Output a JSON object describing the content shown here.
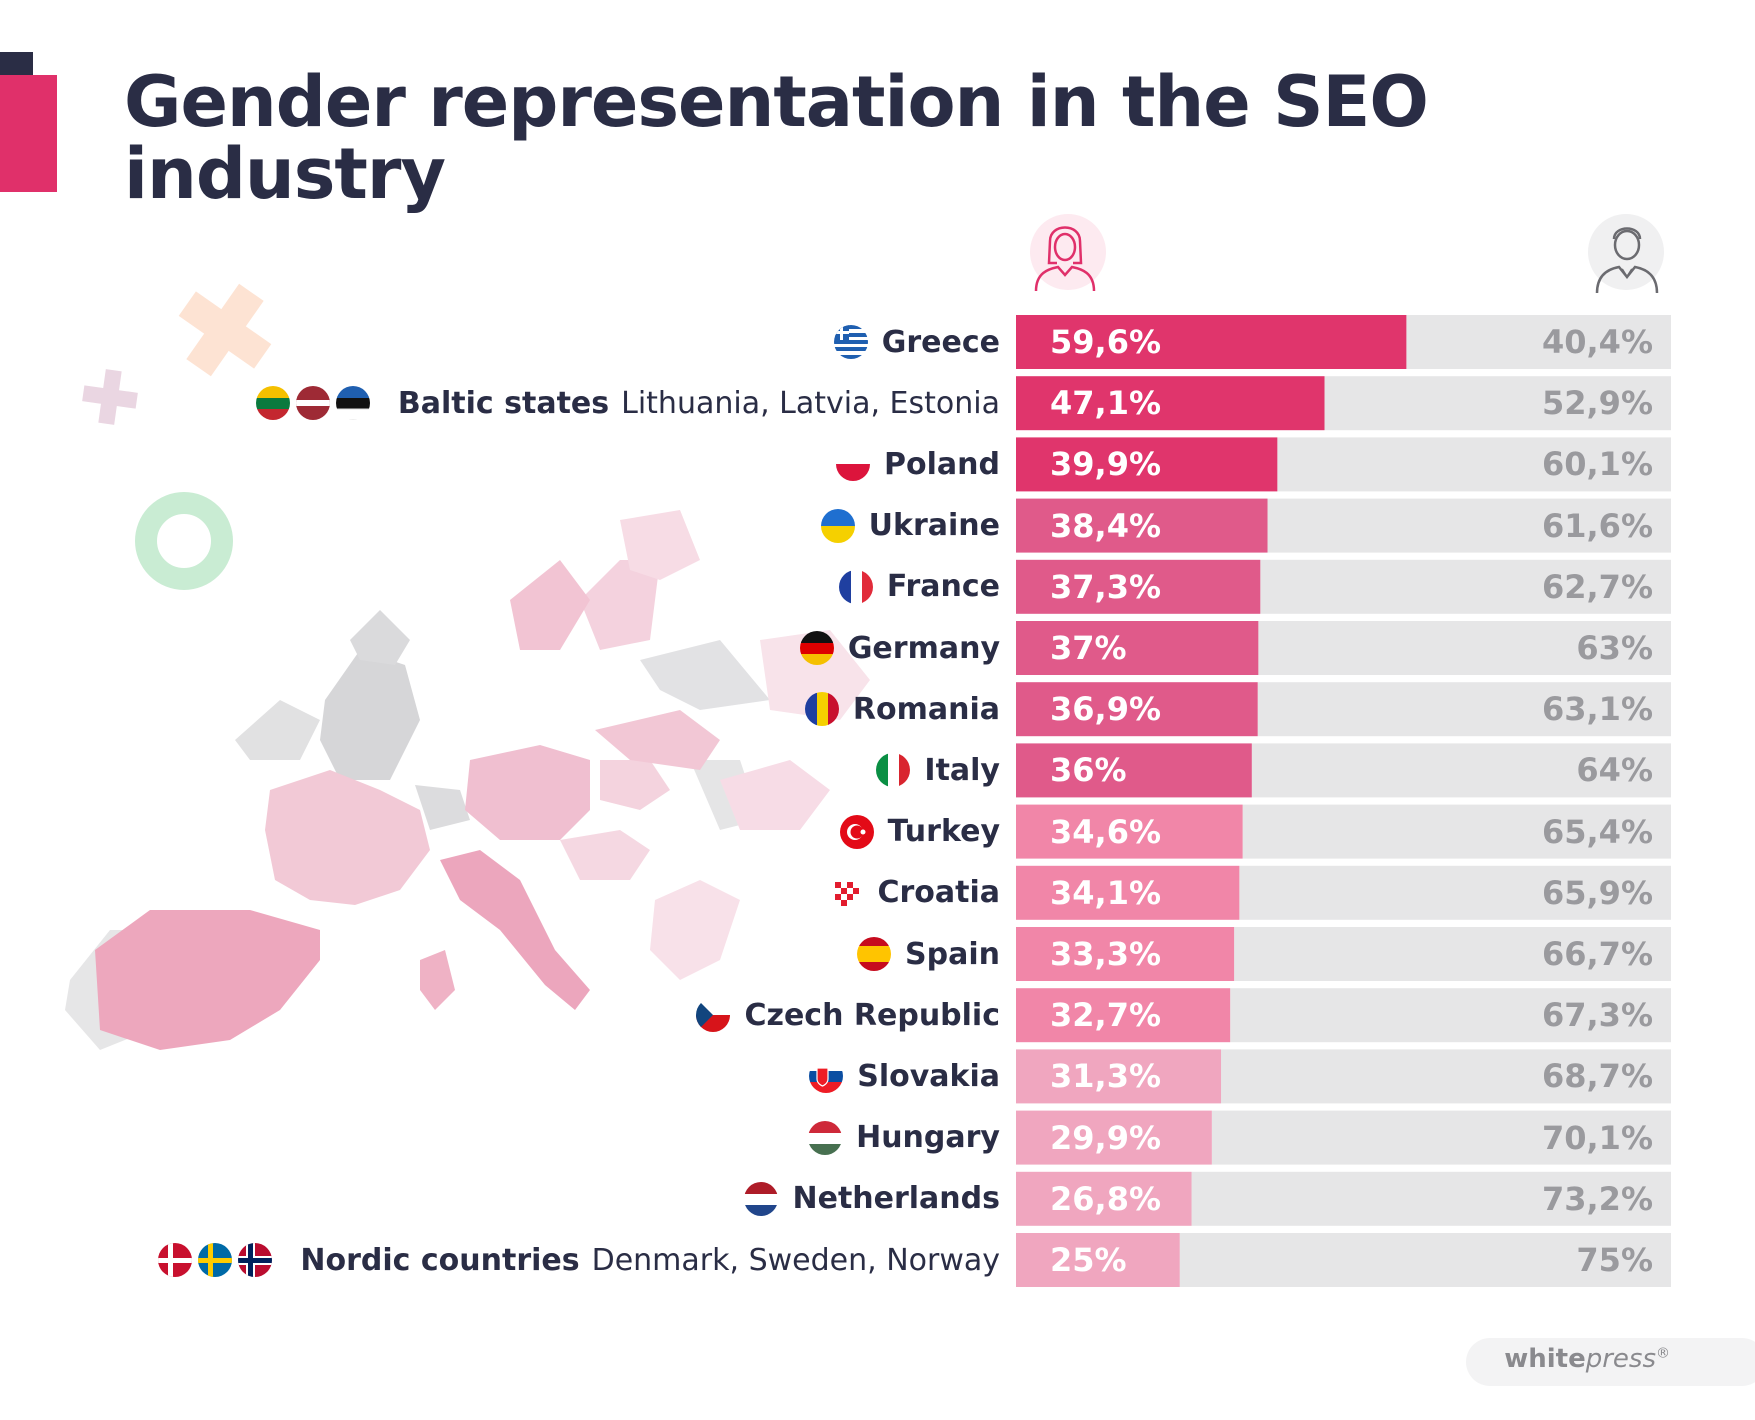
{
  "title": "Gender representation in the SEO industry",
  "chart_data": {
    "type": "bar",
    "orientation": "horizontal",
    "stacked": true,
    "title": "Gender representation in the SEO industry",
    "series": [
      {
        "name": "Women",
        "icon": "woman-icon"
      },
      {
        "name": "Men",
        "icon": "man-icon"
      }
    ],
    "xlim": [
      0,
      100
    ],
    "rows": [
      {
        "country": "Greece",
        "sub": "",
        "flags": [
          "gr"
        ],
        "women": 59.6,
        "men": 40.4,
        "women_label": "59,6%",
        "men_label": "40,4%"
      },
      {
        "country": "Baltic states",
        "sub": "Lithuania, Latvia, Estonia",
        "flags": [
          "lt",
          "lv",
          "ee"
        ],
        "women": 47.1,
        "men": 52.9,
        "women_label": "47,1%",
        "men_label": "52,9%"
      },
      {
        "country": "Poland",
        "sub": "",
        "flags": [
          "pl"
        ],
        "women": 39.9,
        "men": 60.1,
        "women_label": "39,9%",
        "men_label": "60,1%"
      },
      {
        "country": "Ukraine",
        "sub": "",
        "flags": [
          "ua"
        ],
        "women": 38.4,
        "men": 61.6,
        "women_label": "38,4%",
        "men_label": "61,6%"
      },
      {
        "country": "France",
        "sub": "",
        "flags": [
          "fr"
        ],
        "women": 37.3,
        "men": 62.7,
        "women_label": "37,3%",
        "men_label": "62,7%"
      },
      {
        "country": "Germany",
        "sub": "",
        "flags": [
          "de"
        ],
        "women": 37,
        "men": 63,
        "women_label": "37%",
        "men_label": "63%"
      },
      {
        "country": "Romania",
        "sub": "",
        "flags": [
          "ro"
        ],
        "women": 36.9,
        "men": 63.1,
        "women_label": "36,9%",
        "men_label": "63,1%"
      },
      {
        "country": "Italy",
        "sub": "",
        "flags": [
          "it"
        ],
        "women": 36,
        "men": 64,
        "women_label": "36%",
        "men_label": "64%"
      },
      {
        "country": "Turkey",
        "sub": "",
        "flags": [
          "tr"
        ],
        "women": 34.6,
        "men": 65.4,
        "women_label": "34,6%",
        "men_label": "65,4%"
      },
      {
        "country": "Croatia",
        "sub": "",
        "flags": [
          "hr"
        ],
        "women": 34.1,
        "men": 65.9,
        "women_label": "34,1%",
        "men_label": "65,9%"
      },
      {
        "country": "Spain",
        "sub": "",
        "flags": [
          "es"
        ],
        "women": 33.3,
        "men": 66.7,
        "women_label": "33,3%",
        "men_label": "66,7%"
      },
      {
        "country": "Czech Republic",
        "sub": "",
        "flags": [
          "cz"
        ],
        "women": 32.7,
        "men": 67.3,
        "women_label": "32,7%",
        "men_label": "67,3%"
      },
      {
        "country": "Slovakia",
        "sub": "",
        "flags": [
          "sk"
        ],
        "women": 31.3,
        "men": 68.7,
        "women_label": "31,3%",
        "men_label": "68,7%"
      },
      {
        "country": "Hungary",
        "sub": "",
        "flags": [
          "hu"
        ],
        "women": 29.9,
        "men": 70.1,
        "women_label": "29,9%",
        "men_label": "70,1%"
      },
      {
        "country": "Netherlands",
        "sub": "",
        "flags": [
          "nl"
        ],
        "women": 26.8,
        "men": 73.2,
        "women_label": "26,8%",
        "men_label": "73,2%"
      },
      {
        "country": "Nordic countries",
        "sub": "Denmark, Sweden, Norway",
        "flags": [
          "dk",
          "se",
          "no"
        ],
        "women": 25,
        "men": 75,
        "women_label": "25%",
        "men_label": "75%"
      }
    ]
  },
  "colors": {
    "women_tiers": [
      "#e0356c",
      "#e0356c",
      "#e0356c",
      "#e05a8a",
      "#e05a8a",
      "#e05a8a",
      "#e05a8a",
      "#e05a8a",
      "#f186a8",
      "#f186a8",
      "#f186a8",
      "#f186a8",
      "#f0a6bf",
      "#f0a6bf",
      "#f0a6bf",
      "#f0a6bf"
    ],
    "men_bar": "#e6e6e7",
    "text_dark": "#2a2d45",
    "accent": "#e0306a"
  },
  "footer": {
    "logo_part1": "white",
    "logo_part2": "press",
    "registered": "®"
  }
}
